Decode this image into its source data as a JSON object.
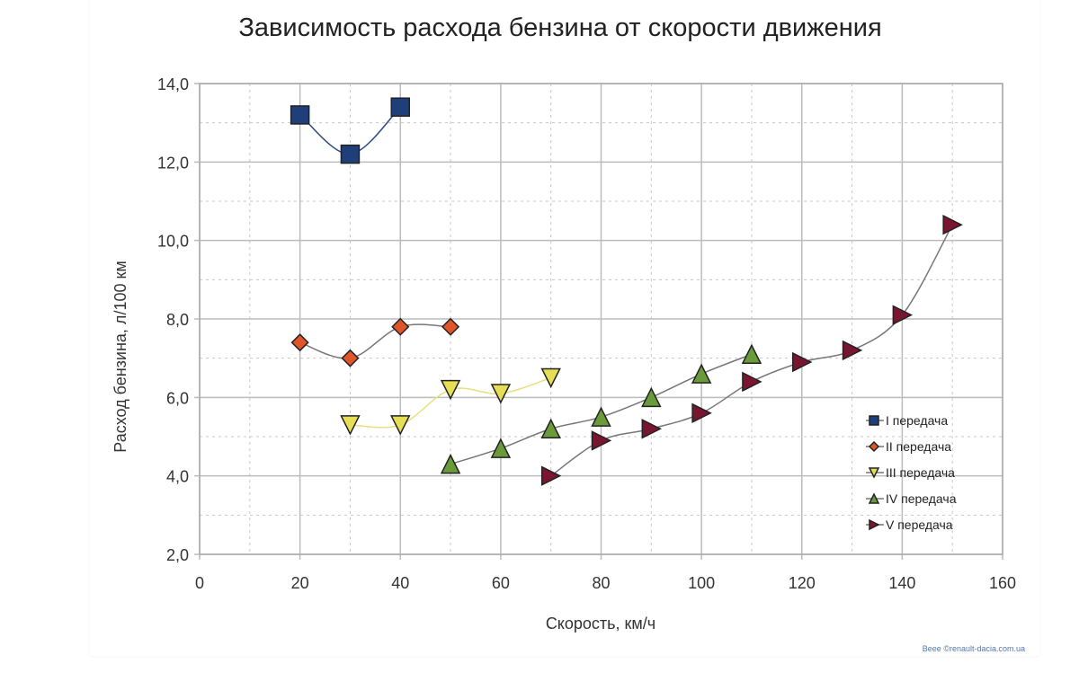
{
  "chart_data": {
    "type": "line",
    "title": "Зависимость расхода бензина от скорости движения",
    "xlabel": "Скорость, км/ч",
    "ylabel": "Расход бензина, л/100 км",
    "xlim": [
      0,
      160
    ],
    "ylim": [
      2,
      14
    ],
    "x_ticks": [
      "0",
      "20",
      "40",
      "60",
      "80",
      "100",
      "120",
      "140",
      "160"
    ],
    "y_ticks": [
      "2,0",
      "4,0",
      "6,0",
      "8,0",
      "10,0",
      "12,0",
      "14,0"
    ],
    "grid": true,
    "legend_position": "right",
    "series": [
      {
        "name": "I передача",
        "marker": "square",
        "color": "#1f3f7a",
        "x": [
          20,
          30,
          40
        ],
        "y": [
          13.2,
          12.2,
          13.4
        ]
      },
      {
        "name": "II передача",
        "marker": "diamond",
        "color": "#e0552a",
        "x": [
          20,
          30,
          40,
          50
        ],
        "y": [
          7.4,
          7.0,
          7.8,
          7.8
        ]
      },
      {
        "name": "III передача",
        "marker": "triangle-down",
        "color": "#e6df55",
        "x": [
          30,
          40,
          50,
          60,
          70
        ],
        "y": [
          5.3,
          5.3,
          6.2,
          6.1,
          6.5
        ]
      },
      {
        "name": "IV передача",
        "marker": "triangle-up",
        "color": "#6a9a3a",
        "x": [
          50,
          60,
          70,
          80,
          90,
          100,
          110
        ],
        "y": [
          4.3,
          4.7,
          5.2,
          5.5,
          6.0,
          6.6,
          7.1
        ]
      },
      {
        "name": "V передача",
        "marker": "triangle-right",
        "color": "#7a1530",
        "x": [
          70,
          80,
          90,
          100,
          110,
          120,
          130,
          140,
          150
        ],
        "y": [
          4.0,
          4.9,
          5.2,
          5.6,
          6.4,
          6.9,
          7.2,
          8.1,
          10.4
        ]
      }
    ]
  },
  "watermark": "Beee ©renault-dacia.com.ua"
}
